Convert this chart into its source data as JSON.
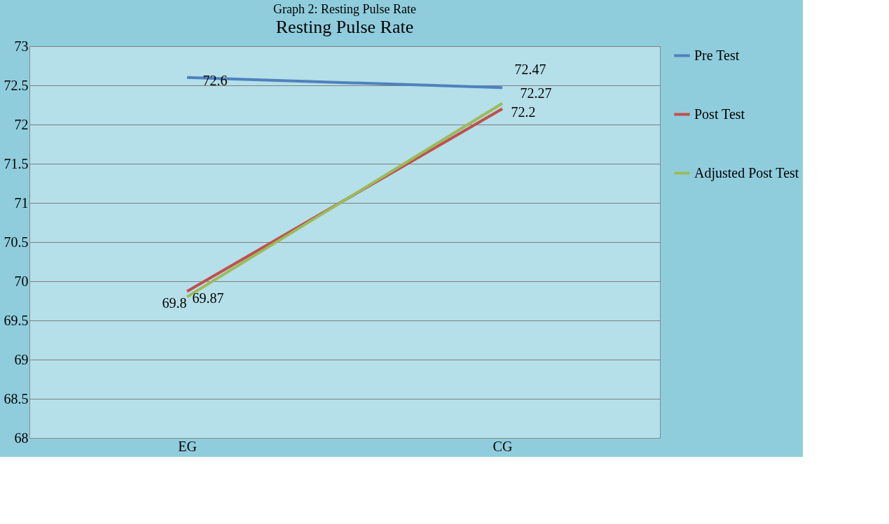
{
  "chart_data": {
    "type": "line",
    "title": "Graph 2: Resting Pulse Rate",
    "subtitle": "Resting Pulse Rate",
    "categories": [
      "EG",
      "CG"
    ],
    "series": [
      {
        "name": "Pre Test",
        "color": "#4f81bd",
        "values": [
          72.6,
          72.47
        ]
      },
      {
        "name": "Post Test",
        "color": "#c0504d",
        "values": [
          69.87,
          72.2
        ]
      },
      {
        "name": "Adjusted Post Test",
        "color": "#9bbb59",
        "values": [
          69.8,
          72.27
        ]
      }
    ],
    "ylim": [
      68,
      73
    ],
    "yticks": [
      68,
      68.5,
      69,
      69.5,
      70,
      70.5,
      71,
      71.5,
      72,
      72.5,
      73
    ],
    "grid": "y",
    "legend": "right",
    "data_labels": true,
    "marker": "none",
    "line_style": "solid"
  }
}
